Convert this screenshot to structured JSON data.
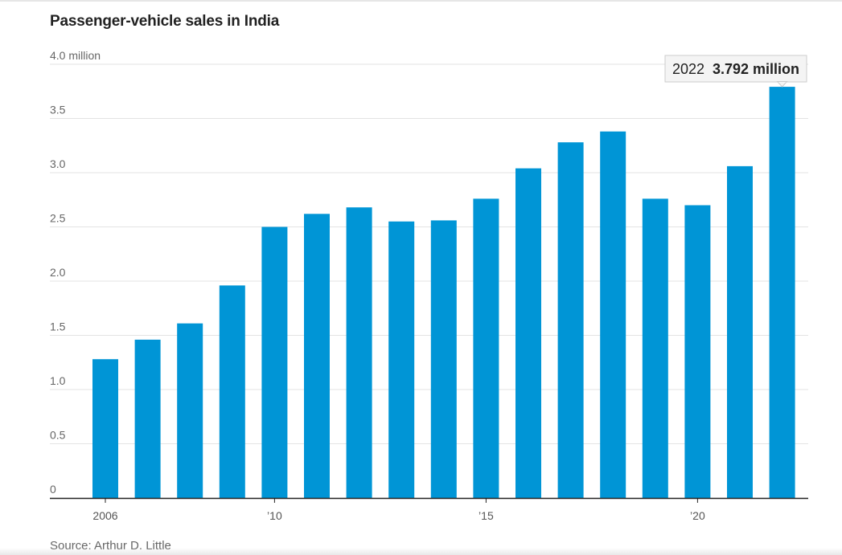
{
  "chart_data": {
    "type": "bar",
    "title": "Passenger-vehicle sales in India",
    "x": [
      2006,
      2007,
      2008,
      2009,
      2010,
      2011,
      2012,
      2013,
      2014,
      2015,
      2016,
      2017,
      2018,
      2019,
      2020,
      2021,
      2022
    ],
    "values": [
      1.28,
      1.46,
      1.61,
      1.96,
      2.5,
      2.62,
      2.68,
      2.55,
      2.56,
      2.76,
      3.04,
      3.28,
      3.38,
      2.76,
      2.7,
      3.06,
      3.792
    ],
    "ylim": [
      0,
      4.0
    ],
    "y_ticks": [
      {
        "value": 0,
        "label": "0"
      },
      {
        "value": 0.5,
        "label": "0.5"
      },
      {
        "value": 1.0,
        "label": "1.0"
      },
      {
        "value": 1.5,
        "label": "1.5"
      },
      {
        "value": 2.0,
        "label": "2.0"
      },
      {
        "value": 2.5,
        "label": "2.5"
      },
      {
        "value": 3.0,
        "label": "3.0"
      },
      {
        "value": 3.5,
        "label": "3.5"
      },
      {
        "value": 4.0,
        "label": "4.0 million"
      }
    ],
    "x_ticks": [
      {
        "value": 2006,
        "label": "2006"
      },
      {
        "value": 2010,
        "label": "’10"
      },
      {
        "value": 2015,
        "label": "’15"
      },
      {
        "value": 2020,
        "label": "’20"
      }
    ],
    "ylabel": "million",
    "xlabel": "",
    "grid": true,
    "bar_color": "#0095d6",
    "annotation": {
      "year": "2022",
      "value_label": "3.792 million"
    },
    "source": "Source: Arthur D. Little"
  }
}
